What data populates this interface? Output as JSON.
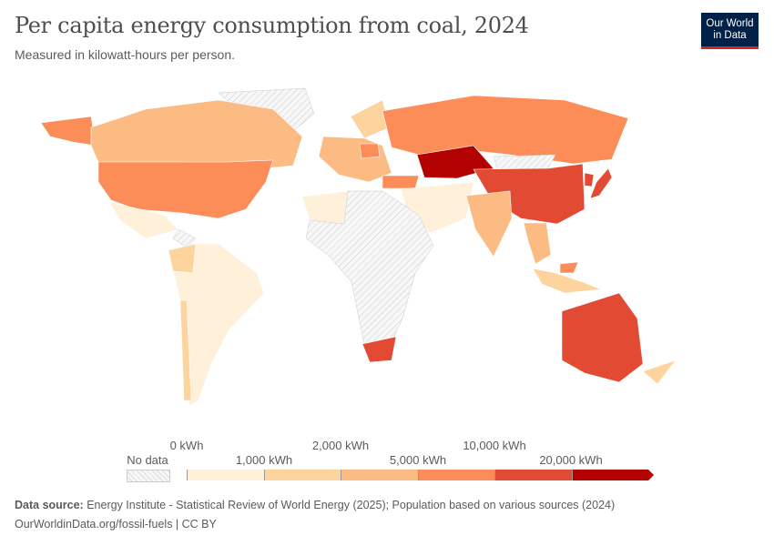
{
  "header": {
    "title": "Per capita energy consumption from coal, 2024",
    "subtitle": "Measured in kilowatt-hours per person."
  },
  "logo": {
    "text_line1": "Our World",
    "text_line2": "in Data",
    "bg_color": "#002147",
    "accent_color": "#ce261e"
  },
  "legend": {
    "no_data_label": "No data",
    "ticks_upper": [
      "0 kWh",
      "2,000 kWh",
      "10,000 kWh"
    ],
    "ticks_lower": [
      "1,000 kWh",
      "5,000 kWh",
      "20,000 kWh"
    ],
    "bin_colors": [
      "#fef0d9",
      "#fdd49e",
      "#fdbb84",
      "#fc8d59",
      "#e34a33",
      "#b30000"
    ]
  },
  "footer": {
    "source_label": "Data source:",
    "source_text": "Energy Institute - Statistical Review of World Energy (2025); Population based on various sources (2024)",
    "url_line": "OurWorldinData.org/fossil-fuels | CC BY"
  }
}
